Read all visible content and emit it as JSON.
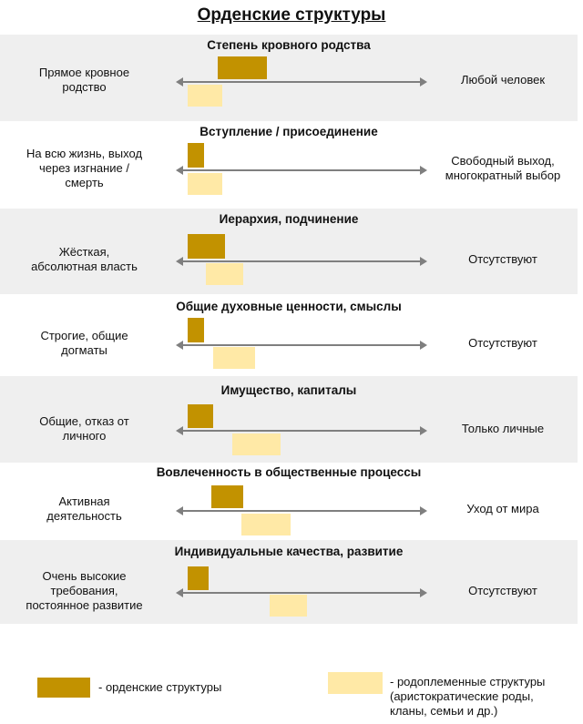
{
  "title": "Орденские структуры",
  "colors": {
    "order": "#c29200",
    "tribal": "#ffe9a6",
    "axis": "#7f7f7f",
    "band": "#efefef"
  },
  "rows": [
    {
      "title": "Степень кровного родства",
      "left": "Прямое кровное\nродство",
      "right": "Любой человек",
      "order": [
        0.13,
        0.34
      ],
      "tribal": [
        0.0,
        0.15
      ]
    },
    {
      "title": "Вступление / присоединение",
      "left": "На всю жизнь, выход\nчерез изгнание /\nсмерть",
      "right": "Свободный выход,\nмногократный выбор",
      "order": [
        0.0,
        0.07
      ],
      "tribal": [
        0.0,
        0.15
      ]
    },
    {
      "title": "Иерархия, подчинение",
      "left": "Жёсткая,\nабсолютная власть",
      "right": "Отсутствуют",
      "order": [
        0.0,
        0.16
      ],
      "tribal": [
        0.08,
        0.24
      ]
    },
    {
      "title": "Общие духовные ценности, смыслы",
      "left": "Строгие, общие\nдогматы",
      "right": "Отсутствуют",
      "order": [
        0.0,
        0.07
      ],
      "tribal": [
        0.11,
        0.29
      ]
    },
    {
      "title": "Имущество, капиталы",
      "left": "Общие, отказ от\nличного",
      "right": "Только личные",
      "order": [
        0.0,
        0.11
      ],
      "tribal": [
        0.19,
        0.4
      ]
    },
    {
      "title": "Вовлеченность в общественные процессы",
      "left": "Активная\nдеятельность",
      "right": "Уход от мира",
      "order": [
        0.1,
        0.24
      ],
      "tribal": [
        0.23,
        0.44
      ]
    },
    {
      "title": "Индивидуальные качества, развитие",
      "left": "Очень высокие\nтребования,\nпостоянное развитие",
      "right": "Отсутствуют",
      "order": [
        0.0,
        0.09
      ],
      "tribal": [
        0.35,
        0.51
      ]
    }
  ],
  "legend": {
    "order": "- орденские структуры",
    "tribal": "- родоплеменные структуры\n(аристократические роды,\nкланы, семьи и др.)"
  }
}
